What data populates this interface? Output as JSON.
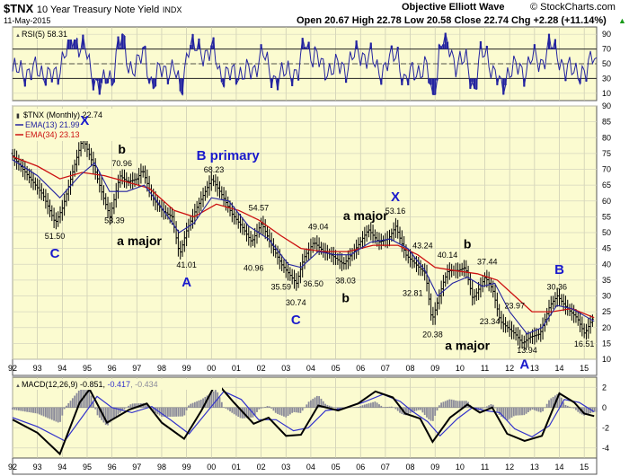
{
  "header": {
    "symbol": "$TNX",
    "name": "10 Year Treasury Note Yield",
    "exchange": "INDX",
    "date": "11-May-2015",
    "source": "Objective Elliott Wave",
    "copyright": "© StockCharts.com",
    "quote": "Open 20.67  High 22.78  Low 20.58  Close 22.74  Chg +2.28 (+11.14%)",
    "chg_up_icon": "up-arrow-icon"
  },
  "colors": {
    "panel_bg": "#fbfbd0",
    "wave_label": "#1a1acc",
    "ema13": "#2323a0",
    "ema34": "#cc1111",
    "rsi_fill": "#2323a0",
    "macd_line": "#000000",
    "signal_line": "#3333cc",
    "hist": "#8a8a9a"
  },
  "chart_data": [
    {
      "type": "line",
      "panel": "rsi",
      "legend": "RSI(5) 58.31",
      "ylim": [
        0,
        100
      ],
      "y_ticks": [
        10,
        30,
        50,
        70,
        90
      ],
      "overbought": 70,
      "oversold": 30,
      "midline": 50,
      "last_value": 58.31
    },
    {
      "type": "bar",
      "panel": "price",
      "legend": "$TNX (Monthly) 22.74",
      "series_legend": [
        {
          "name": "EMA(13) 21.99",
          "color": "#2323a0"
        },
        {
          "name": "EMA(34) 23.13",
          "color": "#cc1111"
        }
      ],
      "ylim": [
        10,
        90
      ],
      "y_ticks": [
        10,
        15,
        20,
        25,
        30,
        35,
        40,
        45,
        50,
        55,
        60,
        65,
        70,
        75,
        80,
        85,
        90
      ],
      "x_ticks": [
        "92",
        "93",
        "94",
        "95",
        "96",
        "97",
        "98",
        "99",
        "00",
        "01",
        "02",
        "03",
        "04",
        "05",
        "06",
        "07",
        "08",
        "09",
        "10",
        "11",
        "12",
        "13",
        "14",
        "15"
      ],
      "x_start": 1992.0,
      "x_end": 2015.5,
      "path": [
        [
          1992.0,
          75
        ],
        [
          1992.4,
          71
        ],
        [
          1992.9,
          66
        ],
        [
          1993.3,
          62
        ],
        [
          1993.8,
          53
        ],
        [
          1994.1,
          58
        ],
        [
          1994.6,
          72
        ],
        [
          1994.9,
          80
        ],
        [
          1995.3,
          72
        ],
        [
          1995.7,
          62
        ],
        [
          1996.0,
          55
        ],
        [
          1996.4,
          68
        ],
        [
          1996.7,
          66
        ],
        [
          1997.1,
          67
        ],
        [
          1997.3,
          70
        ],
        [
          1997.7,
          61
        ],
        [
          1998.1,
          57
        ],
        [
          1998.5,
          55
        ],
        [
          1998.8,
          43
        ],
        [
          1999.1,
          51
        ],
        [
          1999.5,
          58
        ],
        [
          1999.9,
          64
        ],
        [
          2000.1,
          67
        ],
        [
          2000.5,
          62
        ],
        [
          2000.9,
          56
        ],
        [
          2001.3,
          52
        ],
        [
          2001.7,
          47
        ],
        [
          2002.1,
          53
        ],
        [
          2002.5,
          46
        ],
        [
          2002.9,
          40
        ],
        [
          2003.5,
          34
        ],
        [
          2003.8,
          42
        ],
        [
          2004.2,
          47
        ],
        [
          2004.6,
          44
        ],
        [
          2004.9,
          43
        ],
        [
          2005.4,
          40
        ],
        [
          2005.9,
          45
        ],
        [
          2006.4,
          51
        ],
        [
          2006.8,
          47
        ],
        [
          2007.2,
          48
        ],
        [
          2007.5,
          52
        ],
        [
          2007.9,
          43
        ],
        [
          2008.3,
          40
        ],
        [
          2008.7,
          37
        ],
        [
          2008.95,
          22
        ],
        [
          2009.4,
          34
        ],
        [
          2009.6,
          38
        ],
        [
          2010.0,
          38
        ],
        [
          2010.3,
          39
        ],
        [
          2010.6,
          29
        ],
        [
          2010.9,
          33
        ],
        [
          2011.1,
          36
        ],
        [
          2011.4,
          32
        ],
        [
          2011.7,
          22
        ],
        [
          2012.0,
          20
        ],
        [
          2012.3,
          18
        ],
        [
          2012.6,
          15
        ],
        [
          2012.9,
          17
        ],
        [
          2013.3,
          18
        ],
        [
          2013.7,
          27
        ],
        [
          2014.0,
          30
        ],
        [
          2014.4,
          26
        ],
        [
          2014.8,
          23
        ],
        [
          2015.1,
          18
        ],
        [
          2015.4,
          22.7
        ]
      ],
      "ema13": [
        [
          1992.0,
          73
        ],
        [
          1993.0,
          68
        ],
        [
          1993.9,
          61
        ],
        [
          1994.7,
          68
        ],
        [
          1995.3,
          72
        ],
        [
          1995.9,
          63
        ],
        [
          1996.6,
          63
        ],
        [
          1997.3,
          65
        ],
        [
          1997.9,
          59
        ],
        [
          1998.7,
          50
        ],
        [
          1999.3,
          53
        ],
        [
          2000.0,
          61
        ],
        [
          2000.7,
          60
        ],
        [
          2001.5,
          52
        ],
        [
          2002.3,
          48
        ],
        [
          2003.1,
          40
        ],
        [
          2003.6,
          39
        ],
        [
          2004.3,
          44
        ],
        [
          2005.0,
          43
        ],
        [
          2005.6,
          43
        ],
        [
          2006.4,
          47
        ],
        [
          2007.2,
          48
        ],
        [
          2007.9,
          45
        ],
        [
          2008.6,
          38
        ],
        [
          2009.1,
          30
        ],
        [
          2009.7,
          34
        ],
        [
          2010.3,
          36
        ],
        [
          2010.9,
          33
        ],
        [
          2011.4,
          34
        ],
        [
          2012.0,
          25
        ],
        [
          2012.7,
          18
        ],
        [
          2013.3,
          20
        ],
        [
          2013.9,
          27
        ],
        [
          2014.5,
          26
        ],
        [
          2015.4,
          22
        ]
      ],
      "ema34": [
        [
          1992.0,
          74
        ],
        [
          1993.0,
          71
        ],
        [
          1993.9,
          67
        ],
        [
          1994.8,
          69
        ],
        [
          1995.7,
          68
        ],
        [
          1996.6,
          66
        ],
        [
          1997.5,
          64
        ],
        [
          1998.5,
          57
        ],
        [
          1999.3,
          55
        ],
        [
          2000.2,
          59
        ],
        [
          2001.1,
          57
        ],
        [
          2001.9,
          54
        ],
        [
          2002.8,
          49
        ],
        [
          2003.6,
          45
        ],
        [
          2004.5,
          44
        ],
        [
          2005.5,
          44
        ],
        [
          2006.5,
          46
        ],
        [
          2007.5,
          46
        ],
        [
          2008.3,
          43
        ],
        [
          2009.0,
          39
        ],
        [
          2009.8,
          38
        ],
        [
          2010.7,
          37
        ],
        [
          2011.5,
          35
        ],
        [
          2012.2,
          30
        ],
        [
          2012.9,
          25
        ],
        [
          2013.7,
          25
        ],
        [
          2014.5,
          26
        ],
        [
          2015.4,
          23.13
        ]
      ],
      "annotations": [
        {
          "label": "X",
          "x": 1994.9,
          "y": 84,
          "wave": true
        },
        {
          "label": "b",
          "x": 1996.4,
          "y": 75,
          "wave": false
        },
        {
          "label": "70.96",
          "x": 1996.4,
          "y": 71,
          "value": true
        },
        {
          "label": "B primary",
          "x": 1999.4,
          "y": 73,
          "wave": true,
          "anchor": "start"
        },
        {
          "label": "68.23",
          "x": 2000.1,
          "y": 69,
          "value": true
        },
        {
          "label": "51.50",
          "x": 1993.7,
          "y": 48,
          "value": true
        },
        {
          "label": "C",
          "x": 1993.7,
          "y": 42,
          "wave": true
        },
        {
          "label": "53.39",
          "x": 1996.1,
          "y": 53,
          "value": true
        },
        {
          "label": "a major",
          "x": 1997.1,
          "y": 46,
          "wave": false
        },
        {
          "label": "41.01",
          "x": 1999.0,
          "y": 39,
          "value": true
        },
        {
          "label": "A",
          "x": 1999.0,
          "y": 33,
          "wave": true
        },
        {
          "label": "54.57",
          "x": 2001.9,
          "y": 57,
          "value": true
        },
        {
          "label": "40.96",
          "x": 2001.7,
          "y": 38,
          "value": true
        },
        {
          "label": "a major",
          "x": 2006.2,
          "y": 54,
          "wave": false
        },
        {
          "label": "49.04",
          "x": 2004.3,
          "y": 51,
          "value": true
        },
        {
          "label": "X",
          "x": 2007.4,
          "y": 60,
          "wave": true
        },
        {
          "label": "53.16",
          "x": 2007.4,
          "y": 56,
          "value": true
        },
        {
          "label": "43.24",
          "x": 2008.5,
          "y": 45,
          "value": true
        },
        {
          "label": "35.59",
          "x": 2002.8,
          "y": 32,
          "value": true
        },
        {
          "label": "36.50",
          "x": 2004.1,
          "y": 33,
          "value": true
        },
        {
          "label": "38.03",
          "x": 2005.4,
          "y": 34,
          "value": true
        },
        {
          "label": "b",
          "x": 2005.4,
          "y": 28,
          "wave": false
        },
        {
          "label": "30.74",
          "x": 2003.4,
          "y": 27,
          "value": true
        },
        {
          "label": "C",
          "x": 2003.4,
          "y": 21,
          "wave": true
        },
        {
          "label": "32.81",
          "x": 2008.1,
          "y": 30,
          "value": true
        },
        {
          "label": "40.14",
          "x": 2009.5,
          "y": 42,
          "value": true
        },
        {
          "label": "b",
          "x": 2010.3,
          "y": 45,
          "wave": false
        },
        {
          "label": "37.44",
          "x": 2011.1,
          "y": 40,
          "value": true
        },
        {
          "label": "20.38",
          "x": 2008.9,
          "y": 17,
          "value": true
        },
        {
          "label": "a major",
          "x": 2010.3,
          "y": 13,
          "wave": false
        },
        {
          "label": "23.34",
          "x": 2011.2,
          "y": 21,
          "value": true
        },
        {
          "label": "23.97",
          "x": 2012.2,
          "y": 26,
          "value": true
        },
        {
          "label": "13.94",
          "x": 2012.7,
          "y": 12,
          "value": true
        },
        {
          "label": "A",
          "x": 2012.6,
          "y": 7,
          "wave": true
        },
        {
          "label": "B",
          "x": 2014.0,
          "y": 37,
          "wave": true
        },
        {
          "label": "30.36",
          "x": 2013.9,
          "y": 32,
          "value": true
        },
        {
          "label": "16.51",
          "x": 2015.0,
          "y": 14,
          "value": true
        }
      ]
    },
    {
      "type": "line",
      "panel": "macd",
      "legend_title": "MACD(12,26,9)",
      "legend_values": [
        "-0.851",
        "-0.417",
        "-0.434"
      ],
      "ylim": [
        -5,
        3
      ],
      "y_ticks": [
        -4,
        -2,
        0,
        2
      ],
      "macd": [
        [
          1992.0,
          -1.2
        ],
        [
          1993.0,
          -2.5
        ],
        [
          1993.9,
          -4.6
        ],
        [
          1994.7,
          0.5
        ],
        [
          1995.1,
          1.8
        ],
        [
          1995.8,
          -1.5
        ],
        [
          1996.7,
          -0.2
        ],
        [
          1997.4,
          0.4
        ],
        [
          1998.0,
          -1.5
        ],
        [
          1998.9,
          -3.1
        ],
        [
          1999.6,
          -0.3
        ],
        [
          2000.2,
          2.5
        ],
        [
          2000.9,
          0.5
        ],
        [
          2001.7,
          -1.6
        ],
        [
          2002.3,
          -1.0
        ],
        [
          2003.0,
          -2.8
        ],
        [
          2003.6,
          -2.7
        ],
        [
          2004.3,
          0.2
        ],
        [
          2005.1,
          -0.3
        ],
        [
          2005.9,
          0.4
        ],
        [
          2006.6,
          1.6
        ],
        [
          2007.3,
          1.0
        ],
        [
          2007.8,
          -0.6
        ],
        [
          2008.4,
          -1.1
        ],
        [
          2008.9,
          -3.4
        ],
        [
          2009.6,
          -1.0
        ],
        [
          2010.3,
          0.3
        ],
        [
          2010.8,
          -0.5
        ],
        [
          2011.3,
          0.0
        ],
        [
          2011.9,
          -2.6
        ],
        [
          2012.6,
          -3.3
        ],
        [
          2013.3,
          -2.8
        ],
        [
          2014.0,
          1.4
        ],
        [
          2014.6,
          0.5
        ],
        [
          2015.0,
          -0.6
        ],
        [
          2015.4,
          -0.85
        ]
      ],
      "signal": [
        [
          1992.0,
          -1.0
        ],
        [
          1993.0,
          -1.9
        ],
        [
          1994.1,
          -3.3
        ],
        [
          1994.9,
          -0.6
        ],
        [
          1995.4,
          1.1
        ],
        [
          1996.0,
          0.0
        ],
        [
          1996.8,
          -0.5
        ],
        [
          1997.6,
          0.1
        ],
        [
          1998.4,
          -1.3
        ],
        [
          1999.1,
          -2.6
        ],
        [
          1999.9,
          -0.2
        ],
        [
          2000.5,
          1.6
        ],
        [
          2001.2,
          0.8
        ],
        [
          2001.9,
          -1.2
        ],
        [
          2002.6,
          -1.2
        ],
        [
          2003.3,
          -2.3
        ],
        [
          2003.9,
          -2.0
        ],
        [
          2004.6,
          -0.3
        ],
        [
          2005.3,
          -0.1
        ],
        [
          2006.1,
          0.5
        ],
        [
          2006.9,
          1.3
        ],
        [
          2007.6,
          0.6
        ],
        [
          2008.1,
          -0.4
        ],
        [
          2008.7,
          -1.4
        ],
        [
          2009.2,
          -2.8
        ],
        [
          2009.9,
          -1.1
        ],
        [
          2010.5,
          0.0
        ],
        [
          2011.0,
          -0.3
        ],
        [
          2011.6,
          -0.5
        ],
        [
          2012.2,
          -2.1
        ],
        [
          2012.9,
          -2.9
        ],
        [
          2013.6,
          -1.8
        ],
        [
          2014.2,
          0.8
        ],
        [
          2014.8,
          0.5
        ],
        [
          2015.4,
          -0.42
        ]
      ],
      "histogram_last": -0.434
    }
  ]
}
